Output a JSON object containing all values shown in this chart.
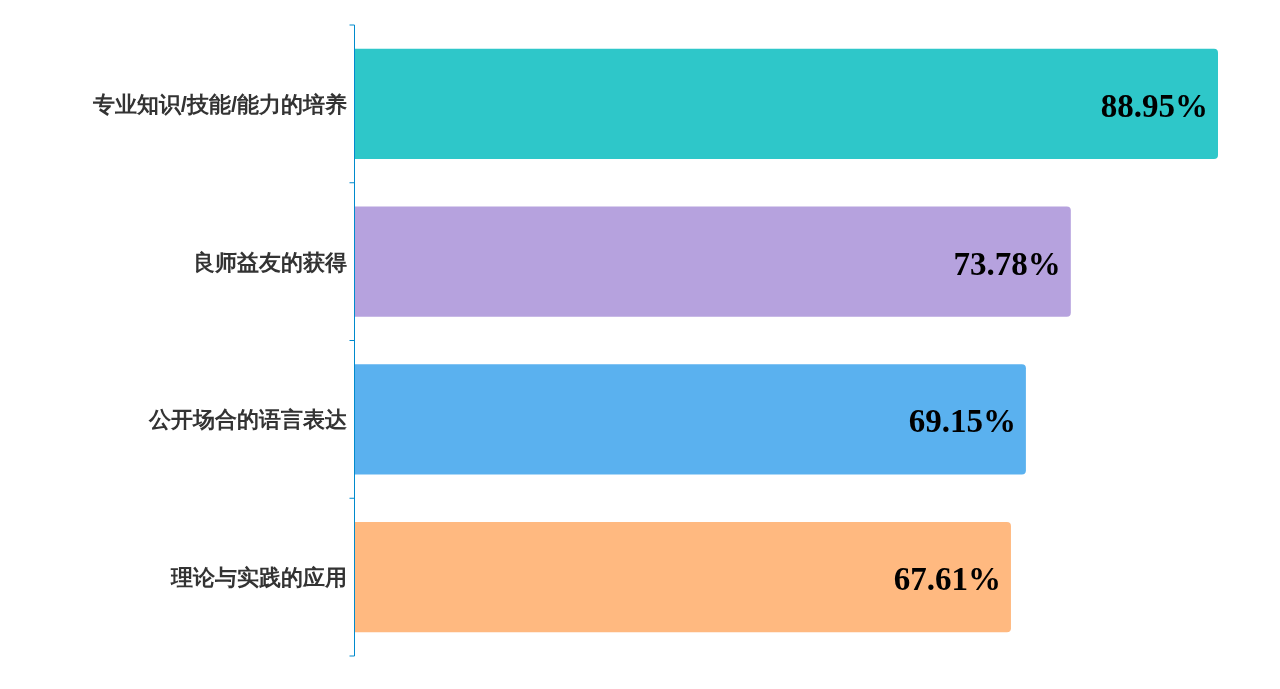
{
  "chart_data": {
    "type": "bar",
    "orientation": "horizontal",
    "categories": [
      "专业知识/技能/能力的培养",
      "良师益友的获得",
      "公开场合的语言表达",
      "理论与实践的应用"
    ],
    "values": [
      88.95,
      73.78,
      69.15,
      67.61
    ],
    "colors": [
      "#2ec7c9",
      "#b6a2de",
      "#5ab1ef",
      "#ffb980"
    ],
    "value_labels": [
      "88.95%",
      "73.78%",
      "69.15%",
      "67.61%"
    ]
  }
}
